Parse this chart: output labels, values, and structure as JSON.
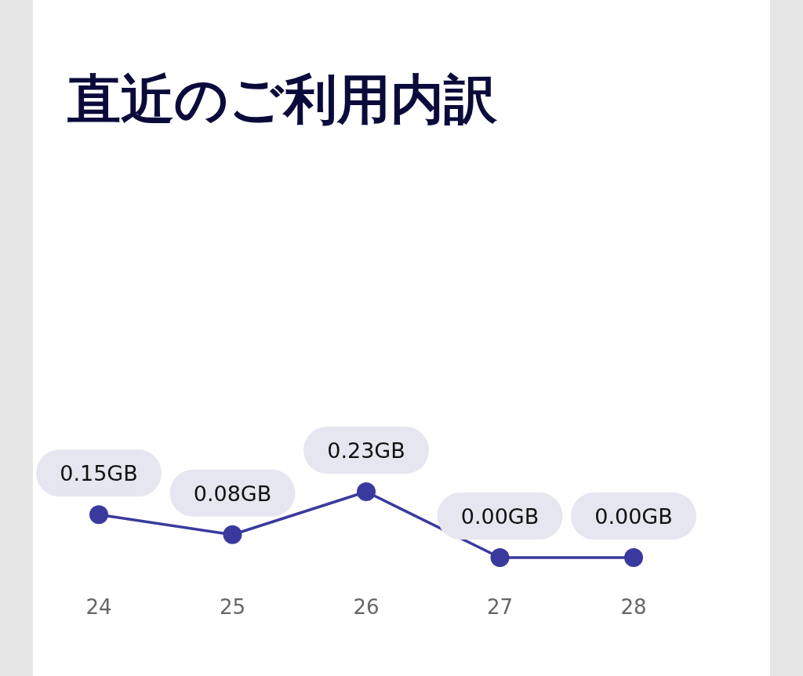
{
  "chart_data": {
    "type": "line",
    "title": "直近のご利用内訳",
    "categories": [
      "24",
      "25",
      "26",
      "27",
      "28"
    ],
    "series": [
      {
        "color": "#3a3a9e",
        "values": [
          0.15,
          0.08,
          0.23,
          0.0,
          0.0
        ],
        "value_labels": [
          "0.15GB",
          "0.08GB",
          "0.23GB",
          "0.00GB",
          "0.00GB"
        ]
      }
    ],
    "marker": "circle",
    "line_style": "solid"
  }
}
